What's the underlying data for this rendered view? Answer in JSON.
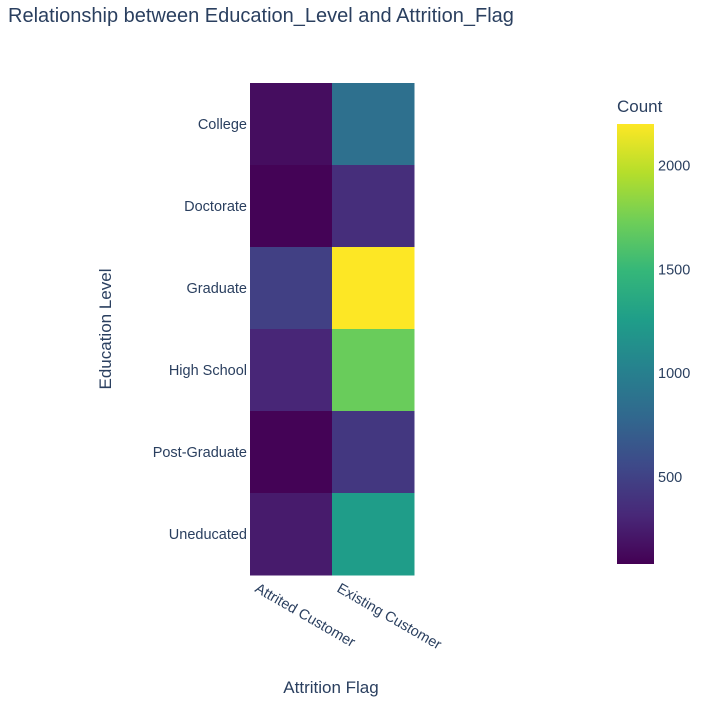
{
  "chart_data": {
    "type": "heatmap",
    "title": "Relationship between Education_Level and Attrition_Flag",
    "xlabel": "Attrition Flag",
    "ylabel": "Education Level",
    "x_categories": [
      "Attrited Customer",
      "Existing Customer"
    ],
    "y_categories": [
      "College",
      "Doctorate",
      "Graduate",
      "High School",
      "Post-Graduate",
      "Uneducated"
    ],
    "z": [
      [
        154,
        859
      ],
      [
        95,
        356
      ],
      [
        487,
        2641
      ],
      [
        306,
        1707
      ],
      [
        92,
        424
      ],
      [
        237,
        1250
      ]
    ],
    "colorbar": {
      "title": "Count",
      "range": [
        80,
        2200
      ],
      "ticks": [
        500,
        1000,
        1500,
        2000
      ],
      "tick_labels": [
        "500",
        "1000",
        "1500",
        "2000"
      ]
    },
    "colorscale": "Viridis",
    "colorscale_stops": [
      "#440154",
      "#482878",
      "#3e4989",
      "#31688e",
      "#26828e",
      "#1f9e89",
      "#35b779",
      "#6ece58",
      "#b5de2b",
      "#fde725"
    ]
  }
}
